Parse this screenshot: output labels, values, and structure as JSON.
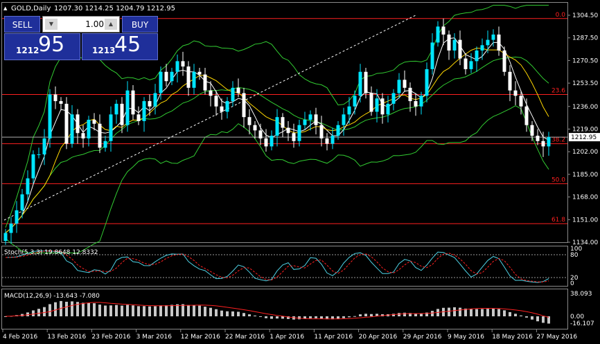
{
  "header": {
    "symbol": "GOLD,Daily",
    "ohlc": "1207.30 1214.25 1204.79 1212.95"
  },
  "trade_panel": {
    "sell_label": "SELL",
    "buy_label": "BUY",
    "lot": "1.00",
    "sell_small": "1212",
    "sell_big": "95",
    "buy_small": "1213",
    "buy_big": "45"
  },
  "price_axis": {
    "ticks": [
      "1304.50",
      "1287.50",
      "1270.50",
      "1253.50",
      "1236.00",
      "1219.00",
      "1202.00",
      "1185.00",
      "1168.00",
      "1151.00",
      "1134.00"
    ],
    "current": "1212.95"
  },
  "fib_levels": [
    {
      "label": "0.0",
      "price": 1302.0
    },
    {
      "label": "23.6",
      "price": 1245.0
    },
    {
      "label": "38.2",
      "price": 1208.0
    },
    {
      "label": "50.0",
      "price": 1178.0
    },
    {
      "label": "61.8",
      "price": 1148.0
    }
  ],
  "current_price": 1212.95,
  "stoch": {
    "label": "Stoch(5,3,3) 19.8648 12.8332",
    "levels": [
      "100",
      "80",
      "20",
      "0"
    ]
  },
  "macd": {
    "label": "MACD(12,26,9) -13.643 -7.080",
    "levels": [
      "38.093",
      "0.00",
      "-16.107"
    ]
  },
  "date_axis": [
    "4 Feb 2016",
    "13 Feb 2016",
    "23 Feb 2016",
    "3 Mar 2016",
    "12 Mar 2016",
    "22 Mar 2016",
    "1 Apr 2016",
    "11 Apr 2016",
    "20 Apr 2016",
    "29 Apr 2016",
    "9 May 2016",
    "18 May 2016",
    "27 May 2016"
  ],
  "colors": {
    "bull": "#00e5ff",
    "bear": "#ffffff",
    "fib": "#ff2020",
    "bands": "#32cd32",
    "ma_fast": "#ffffff",
    "ma_slow": "#ffd700",
    "signal": "#ff2020",
    "hist": "#c8c8c8"
  },
  "chart_data": {
    "type": "candlestick",
    "dates_first": "4 Feb 2016",
    "dates_last": "27 May 2016",
    "closes": [
      1141,
      1148,
      1158,
      1170,
      1182,
      1200,
      1200,
      1212,
      1245,
      1240,
      1238,
      1208,
      1230,
      1216,
      1212,
      1226,
      1223,
      1205,
      1210,
      1230,
      1238,
      1222,
      1248,
      1230,
      1225,
      1240,
      1236,
      1246,
      1262,
      1255,
      1262,
      1270,
      1266,
      1250,
      1262,
      1260,
      1248,
      1244,
      1236,
      1232,
      1240,
      1250,
      1246,
      1228,
      1222,
      1218,
      1212,
      1206,
      1214,
      1228,
      1220,
      1216,
      1210,
      1222,
      1226,
      1230,
      1222,
      1212,
      1208,
      1214,
      1222,
      1230,
      1236,
      1244,
      1262,
      1246,
      1232,
      1242,
      1230,
      1238,
      1246,
      1256,
      1250,
      1240,
      1236,
      1244,
      1264,
      1284,
      1296,
      1290,
      1278,
      1286,
      1272,
      1264,
      1270,
      1278,
      1282,
      1286,
      1290,
      1278,
      1262,
      1248,
      1244,
      1236,
      1222,
      1214,
      1210,
      1206,
      1212.95
    ]
  }
}
